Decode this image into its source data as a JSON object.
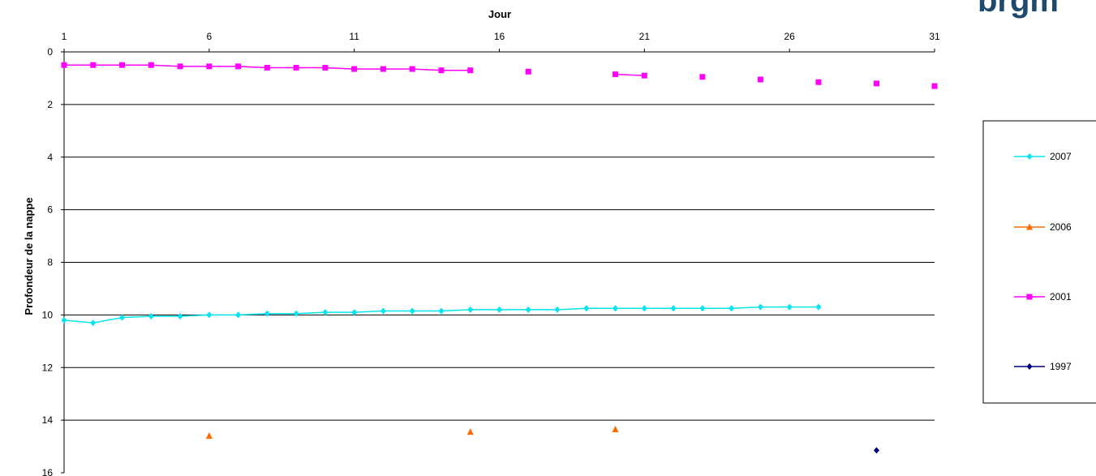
{
  "logo_text": "brgm",
  "chart_data": {
    "type": "line",
    "xlabel": "Jour",
    "ylabel": "Profondeur de la nappe",
    "xlim": [
      1,
      31
    ],
    "ylim": [
      0,
      16
    ],
    "y_inverted": true,
    "x_axis_position": "top",
    "x_ticks": [
      1,
      6,
      11,
      16,
      21,
      26,
      31
    ],
    "y_ticks": [
      0,
      2,
      4,
      6,
      8,
      10,
      12,
      14,
      16
    ],
    "grid": "horizontal",
    "legend_position": "right",
    "series": [
      {
        "name": "2007",
        "color": "#00e5ee",
        "marker": "diamond",
        "points": [
          [
            1,
            10.2
          ],
          [
            2,
            10.3
          ],
          [
            3,
            10.1
          ],
          [
            4,
            10.05
          ],
          [
            5,
            10.05
          ],
          [
            6,
            10.0
          ],
          [
            7,
            10.0
          ],
          [
            8,
            9.95
          ],
          [
            9,
            9.95
          ],
          [
            10,
            9.9
          ],
          [
            11,
            9.9
          ],
          [
            12,
            9.85
          ],
          [
            13,
            9.85
          ],
          [
            14,
            9.85
          ],
          [
            15,
            9.8
          ],
          [
            16,
            9.8
          ],
          [
            17,
            9.8
          ],
          [
            18,
            9.8
          ],
          [
            19,
            9.75
          ],
          [
            20,
            9.75
          ],
          [
            21,
            9.75
          ],
          [
            22,
            9.75
          ],
          [
            23,
            9.75
          ],
          [
            24,
            9.75
          ],
          [
            25,
            9.7
          ],
          [
            26,
            9.7
          ],
          [
            27,
            9.7
          ]
        ],
        "segments": [
          [
            0,
            26
          ]
        ]
      },
      {
        "name": "2006",
        "color": "#ff6a00",
        "marker": "triangle",
        "points": [
          [
            6,
            14.6
          ],
          [
            15,
            14.45
          ],
          [
            20,
            14.35
          ]
        ],
        "segments": []
      },
      {
        "name": "2001",
        "color": "#ff00ff",
        "marker": "square",
        "points": [
          [
            1,
            0.5
          ],
          [
            2,
            0.5
          ],
          [
            3,
            0.5
          ],
          [
            4,
            0.5
          ],
          [
            5,
            0.55
          ],
          [
            6,
            0.55
          ],
          [
            7,
            0.55
          ],
          [
            8,
            0.6
          ],
          [
            9,
            0.6
          ],
          [
            10,
            0.6
          ],
          [
            11,
            0.65
          ],
          [
            12,
            0.65
          ],
          [
            13,
            0.65
          ],
          [
            14,
            0.7
          ],
          [
            15,
            0.7
          ],
          [
            17,
            0.75
          ],
          [
            20,
            0.85
          ],
          [
            21,
            0.9
          ],
          [
            23,
            0.95
          ],
          [
            25,
            1.05
          ],
          [
            27,
            1.15
          ],
          [
            29,
            1.2
          ],
          [
            31,
            1.3
          ]
        ],
        "segments": [
          [
            0,
            14
          ],
          [
            16,
            17
          ]
        ]
      },
      {
        "name": "1997",
        "color": "#000080",
        "marker": "diamond",
        "points": [
          [
            29,
            15.15
          ]
        ],
        "segments": []
      }
    ]
  }
}
